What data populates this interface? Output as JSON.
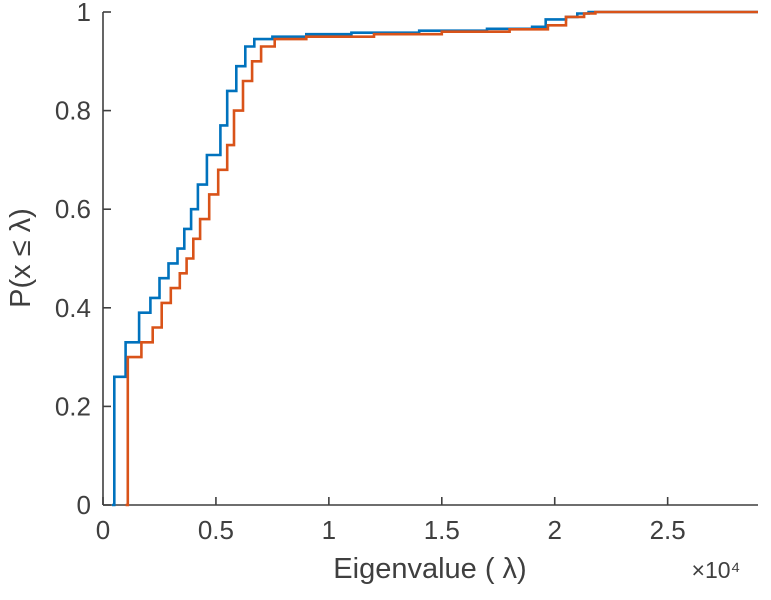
{
  "figure": {
    "background": "#ffffff",
    "axis_color": "#3f3f3f",
    "tick_label_color": "#3f3f3f"
  },
  "chart_data": {
    "type": "line",
    "subtype": "empirical-cdf-stairs",
    "title": "",
    "xlabel": "Eigenvalue ( λ)",
    "ylabel": "P(x ≤ λ)",
    "x_multiplier_label": "×10⁴",
    "xlim": [
      0,
      29000
    ],
    "ylim": [
      0,
      1
    ],
    "x_end": 29000,
    "grid": false,
    "legend_position": "none",
    "x_ticks": [
      0,
      5000,
      10000,
      15000,
      20000,
      25000
    ],
    "x_tick_labels": [
      "0",
      "0.5",
      "1",
      "1.5",
      "2",
      "2.5"
    ],
    "y_ticks": [
      0,
      0.2,
      0.4,
      0.6,
      0.8,
      1
    ],
    "y_tick_labels": [
      "0",
      "0.2",
      "0.4",
      "0.6",
      "0.8",
      "1"
    ],
    "series": [
      {
        "name": "cdf-series-blue",
        "color": "#0072BD",
        "line_width": 2.6,
        "step": true,
        "points": [
          [
            400,
            0
          ],
          [
            500,
            0.26
          ],
          [
            1000,
            0.33
          ],
          [
            1600,
            0.39
          ],
          [
            2100,
            0.42
          ],
          [
            2500,
            0.46
          ],
          [
            2900,
            0.49
          ],
          [
            3300,
            0.52
          ],
          [
            3600,
            0.56
          ],
          [
            3900,
            0.6
          ],
          [
            4200,
            0.65
          ],
          [
            4600,
            0.71
          ],
          [
            5200,
            0.77
          ],
          [
            5500,
            0.84
          ],
          [
            5900,
            0.89
          ],
          [
            6300,
            0.93
          ],
          [
            6700,
            0.945
          ],
          [
            7500,
            0.95
          ],
          [
            9000,
            0.955
          ],
          [
            11000,
            0.958
          ],
          [
            14000,
            0.962
          ],
          [
            17000,
            0.966
          ],
          [
            19000,
            0.97
          ],
          [
            19600,
            0.985
          ],
          [
            20500,
            0.99
          ],
          [
            21000,
            0.997
          ],
          [
            21500,
            1.0
          ]
        ]
      },
      {
        "name": "cdf-series-orange",
        "color": "#D95319",
        "line_width": 2.6,
        "step": true,
        "points": [
          [
            1000,
            0
          ],
          [
            1100,
            0.3
          ],
          [
            1700,
            0.33
          ],
          [
            2200,
            0.36
          ],
          [
            2600,
            0.41
          ],
          [
            3000,
            0.44
          ],
          [
            3400,
            0.47
          ],
          [
            3700,
            0.5
          ],
          [
            4000,
            0.54
          ],
          [
            4300,
            0.58
          ],
          [
            4700,
            0.63
          ],
          [
            5100,
            0.68
          ],
          [
            5500,
            0.73
          ],
          [
            5800,
            0.8
          ],
          [
            6200,
            0.86
          ],
          [
            6600,
            0.9
          ],
          [
            7000,
            0.93
          ],
          [
            7600,
            0.945
          ],
          [
            9000,
            0.95
          ],
          [
            12000,
            0.955
          ],
          [
            15000,
            0.96
          ],
          [
            18000,
            0.965
          ],
          [
            19700,
            0.973
          ],
          [
            20500,
            0.99
          ],
          [
            21300,
            0.997
          ],
          [
            21800,
            1.0
          ]
        ]
      }
    ]
  }
}
